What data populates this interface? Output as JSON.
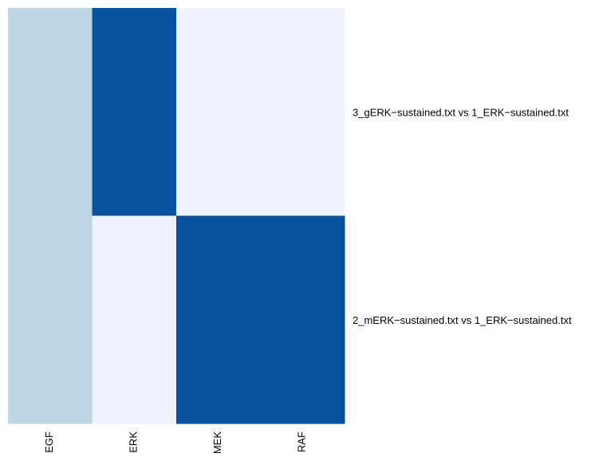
{
  "chart_data": {
    "type": "heatmap",
    "columns": [
      "EGF",
      "ERK",
      "MEK",
      "RAF"
    ],
    "rows": [
      "3_gERK−sustained.txt vs 1_ERK−sustained.txt",
      "2_mERK−sustained.txt vs 1_ERK−sustained.txt"
    ],
    "values": [
      [
        0.5,
        1.0,
        0.0,
        0.0
      ],
      [
        0.5,
        0.0,
        1.0,
        1.0
      ]
    ],
    "color_scale": {
      "low": "#eef3ff",
      "mid": "#bdd6e6",
      "high": "#08519c"
    },
    "legend": "none"
  }
}
